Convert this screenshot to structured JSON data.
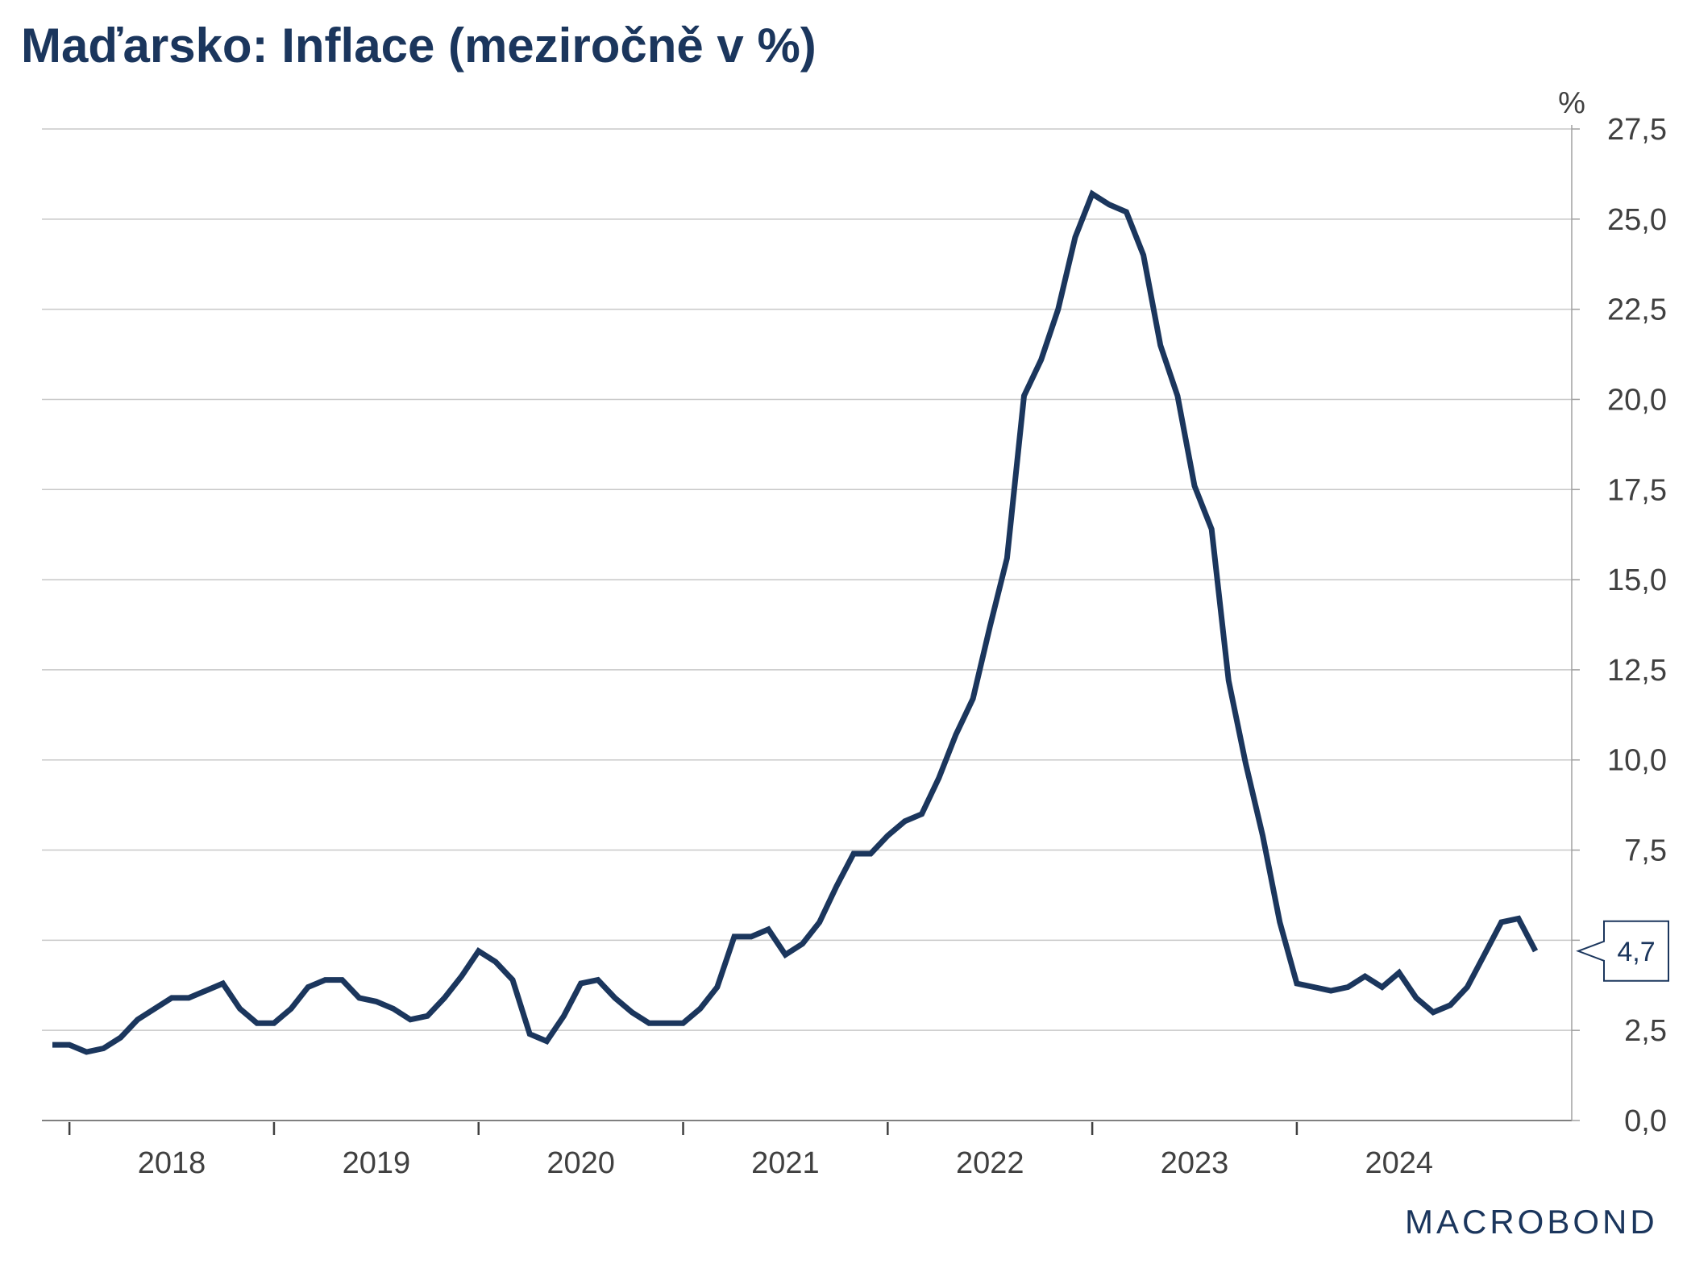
{
  "title": "Maďarsko: Inflace (meziročně v %)",
  "colors": {
    "line": "#1b365d",
    "grid": "#c8c8c8",
    "text": "#404040",
    "title": "#1b365d"
  },
  "logo": {
    "text": "MACROBOND"
  },
  "chart_data": {
    "type": "line",
    "title": "Maďarsko: Inflace (meziročně v %)",
    "ylabel": "%",
    "xlabel": "",
    "ylim": [
      0,
      27.5
    ],
    "y_ticks": [
      0,
      2.5,
      5,
      7.5,
      10,
      12.5,
      15,
      17.5,
      20,
      22.5,
      25,
      27.5
    ],
    "y_tick_labels": [
      "0,0",
      "2,5",
      "",
      "7,5",
      "10,0",
      "12,5",
      "15,0",
      "17,5",
      "20,0",
      "22,5",
      "25,0",
      "27,5"
    ],
    "x_year_labels": [
      "2018",
      "2019",
      "2020",
      "2021",
      "2022",
      "2023",
      "2024"
    ],
    "x_range": [
      "2017-12",
      "2025-03"
    ],
    "grid": true,
    "y_axis_position": "right",
    "last_value_label": "4,7",
    "series": [
      {
        "color": "#1b365d",
        "points": [
          [
            "2017-12",
            2.1
          ],
          [
            "2018-01",
            2.1
          ],
          [
            "2018-02",
            1.9
          ],
          [
            "2018-03",
            2.0
          ],
          [
            "2018-04",
            2.3
          ],
          [
            "2018-05",
            2.8
          ],
          [
            "2018-06",
            3.1
          ],
          [
            "2018-07",
            3.4
          ],
          [
            "2018-08",
            3.4
          ],
          [
            "2018-09",
            3.6
          ],
          [
            "2018-10",
            3.8
          ],
          [
            "2018-11",
            3.1
          ],
          [
            "2018-12",
            2.7
          ],
          [
            "2019-01",
            2.7
          ],
          [
            "2019-02",
            3.1
          ],
          [
            "2019-03",
            3.7
          ],
          [
            "2019-04",
            3.9
          ],
          [
            "2019-05",
            3.9
          ],
          [
            "2019-06",
            3.4
          ],
          [
            "2019-07",
            3.3
          ],
          [
            "2019-08",
            3.1
          ],
          [
            "2019-09",
            2.8
          ],
          [
            "2019-10",
            2.9
          ],
          [
            "2019-11",
            3.4
          ],
          [
            "2019-12",
            4.0
          ],
          [
            "2020-01",
            4.7
          ],
          [
            "2020-02",
            4.4
          ],
          [
            "2020-03",
            3.9
          ],
          [
            "2020-04",
            2.4
          ],
          [
            "2020-05",
            2.2
          ],
          [
            "2020-06",
            2.9
          ],
          [
            "2020-07",
            3.8
          ],
          [
            "2020-08",
            3.9
          ],
          [
            "2020-09",
            3.4
          ],
          [
            "2020-10",
            3.0
          ],
          [
            "2020-11",
            2.7
          ],
          [
            "2020-12",
            2.7
          ],
          [
            "2021-01",
            2.7
          ],
          [
            "2021-02",
            3.1
          ],
          [
            "2021-03",
            3.7
          ],
          [
            "2021-04",
            5.1
          ],
          [
            "2021-05",
            5.1
          ],
          [
            "2021-06",
            5.3
          ],
          [
            "2021-07",
            4.6
          ],
          [
            "2021-08",
            4.9
          ],
          [
            "2021-09",
            5.5
          ],
          [
            "2021-10",
            6.5
          ],
          [
            "2021-11",
            7.4
          ],
          [
            "2021-12",
            7.4
          ],
          [
            "2022-01",
            7.9
          ],
          [
            "2022-02",
            8.3
          ],
          [
            "2022-03",
            8.5
          ],
          [
            "2022-04",
            9.5
          ],
          [
            "2022-05",
            10.7
          ],
          [
            "2022-06",
            11.7
          ],
          [
            "2022-07",
            13.7
          ],
          [
            "2022-08",
            15.6
          ],
          [
            "2022-09",
            20.1
          ],
          [
            "2022-10",
            21.1
          ],
          [
            "2022-11",
            22.5
          ],
          [
            "2022-12",
            24.5
          ],
          [
            "2023-01",
            25.7
          ],
          [
            "2023-02",
            25.4
          ],
          [
            "2023-03",
            25.2
          ],
          [
            "2023-04",
            24.0
          ],
          [
            "2023-05",
            21.5
          ],
          [
            "2023-06",
            20.1
          ],
          [
            "2023-07",
            17.6
          ],
          [
            "2023-08",
            16.4
          ],
          [
            "2023-09",
            12.2
          ],
          [
            "2023-10",
            9.9
          ],
          [
            "2023-11",
            7.9
          ],
          [
            "2023-12",
            5.5
          ],
          [
            "2024-01",
            3.8
          ],
          [
            "2024-02",
            3.7
          ],
          [
            "2024-03",
            3.6
          ],
          [
            "2024-04",
            3.7
          ],
          [
            "2024-05",
            4.0
          ],
          [
            "2024-06",
            3.7
          ],
          [
            "2024-07",
            4.1
          ],
          [
            "2024-08",
            3.4
          ],
          [
            "2024-09",
            3.0
          ],
          [
            "2024-10",
            3.2
          ],
          [
            "2024-11",
            3.7
          ],
          [
            "2024-12",
            4.6
          ],
          [
            "2025-01",
            5.5
          ],
          [
            "2025-02",
            5.6
          ],
          [
            "2025-03",
            4.7
          ]
        ]
      }
    ]
  }
}
